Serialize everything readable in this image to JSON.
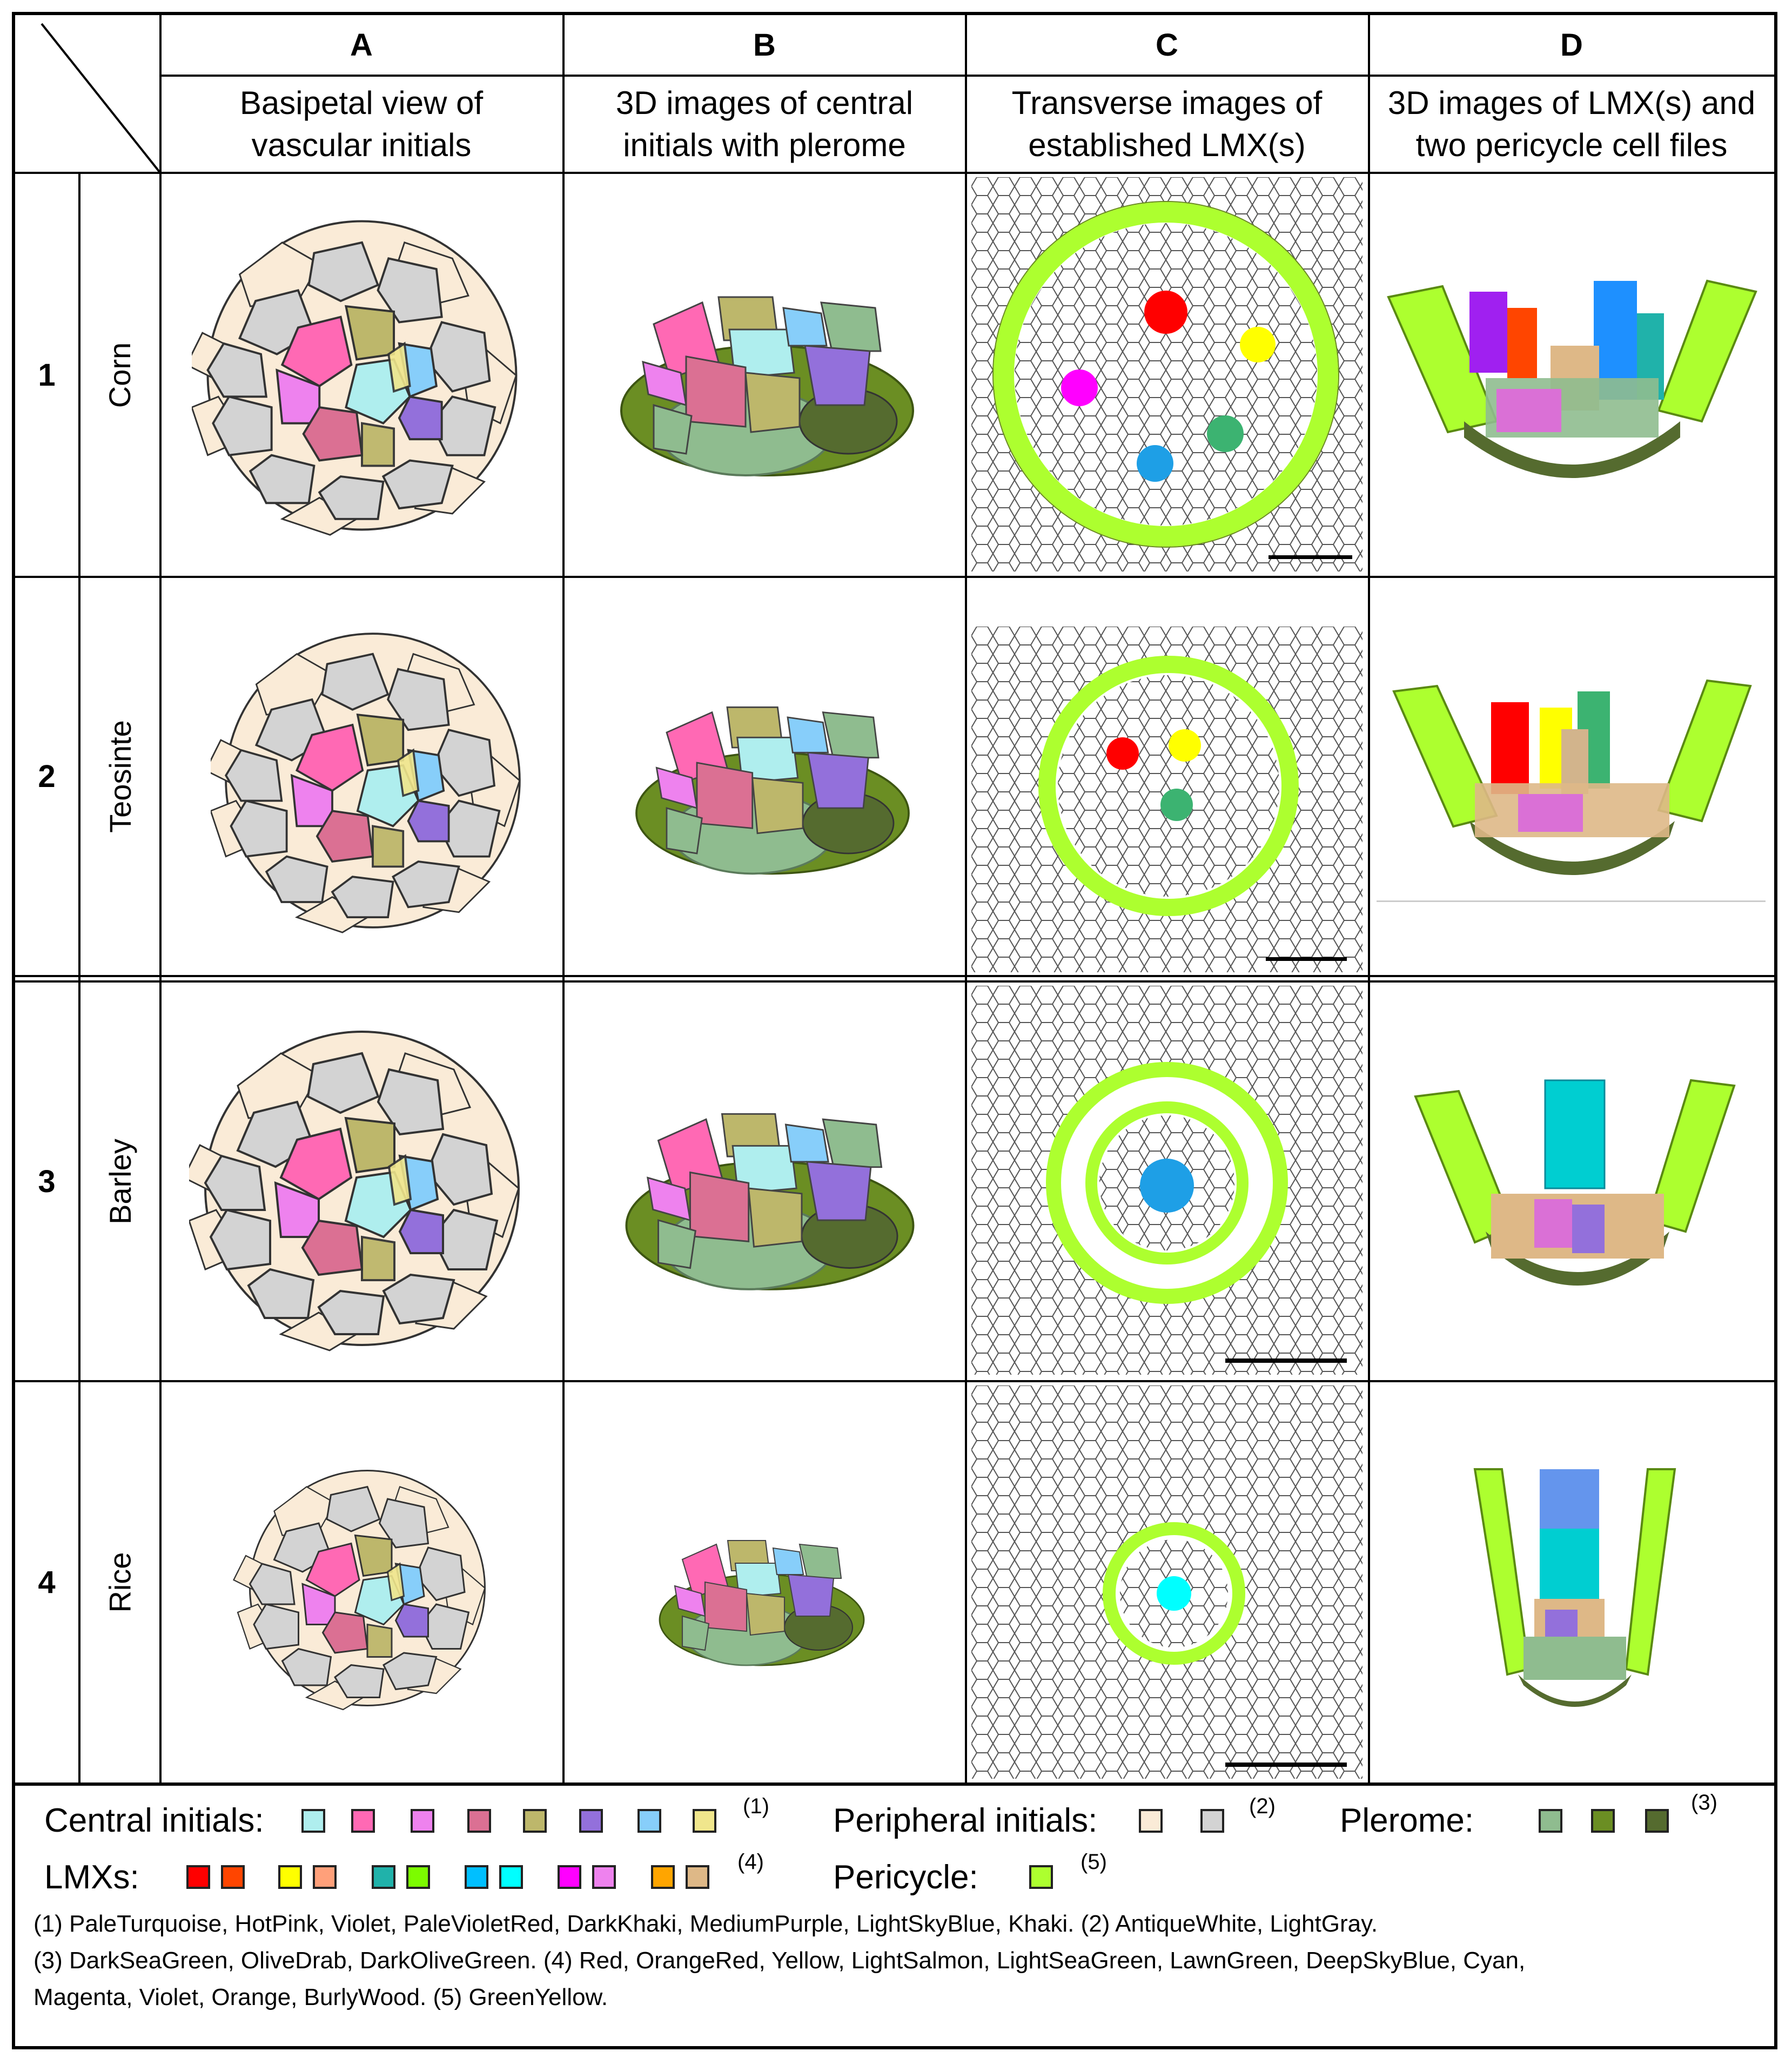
{
  "columns": [
    {
      "letter": "A",
      "desc": "Basipetal view of\nvascular initials"
    },
    {
      "letter": "B",
      "desc": "3D images of central\ninitials with plerome"
    },
    {
      "letter": "C",
      "desc": "Transverse images of\nestablished LMX(s)"
    },
    {
      "letter": "D",
      "desc": "3D images of LMX(s) and\ntwo pericycle cell files"
    }
  ],
  "rows": [
    {
      "num": "1",
      "species": "Corn"
    },
    {
      "num": "2",
      "species": "Teosinte"
    },
    {
      "num": "3",
      "species": "Barley"
    },
    {
      "num": "4",
      "species": "Rice"
    }
  ],
  "legend": {
    "central": {
      "label": "Central initials:",
      "note": "(1)",
      "colors": [
        "#AFEEEE",
        "#FF69B4",
        "#EE82EE",
        "#DB7093",
        "#BDB76B",
        "#9370DB",
        "#87CEFA",
        "#F0E68C"
      ]
    },
    "peripheral": {
      "label": "Peripheral initials:",
      "note": "(2)",
      "colors": [
        "#FAEBD7",
        "#D3D3D3"
      ]
    },
    "plerome": {
      "label": "Plerome:",
      "note": "(3)",
      "colors": [
        "#8FBC8F",
        "#6B8E23",
        "#556B2F"
      ]
    },
    "lmx": {
      "label": "LMXs:",
      "note": "(4)",
      "colors": [
        "#FF0000",
        "#FF4500",
        "#FFFF00",
        "#FFA07A",
        "#20B2AA",
        "#7CFC00",
        "#00BFFF",
        "#00FFFF",
        "#FF00FF",
        "#EE82EE",
        "#FFA500",
        "#DEB887"
      ]
    },
    "pericycle": {
      "label": "Pericycle:",
      "note": "(5)",
      "colors": [
        "#ADFF2F"
      ]
    }
  },
  "footnotes": [
    "(1) PaleTurquoise, HotPink, Violet, PaleVioletRed, DarkKhaki, MediumPurple, LightSkyBlue, Khaki. (2) AntiqueWhite, LightGray.",
    "(3) DarkSeaGreen, OliveDrab, DarkOliveGreen. (4) Red, OrangeRed, Yellow, LightSalmon, LightSeaGreen, LawnGreen, DeepSkyBlue, Cyan,",
    "Magenta, Violet, Orange, BurlyWood. (5) GreenYellow."
  ]
}
